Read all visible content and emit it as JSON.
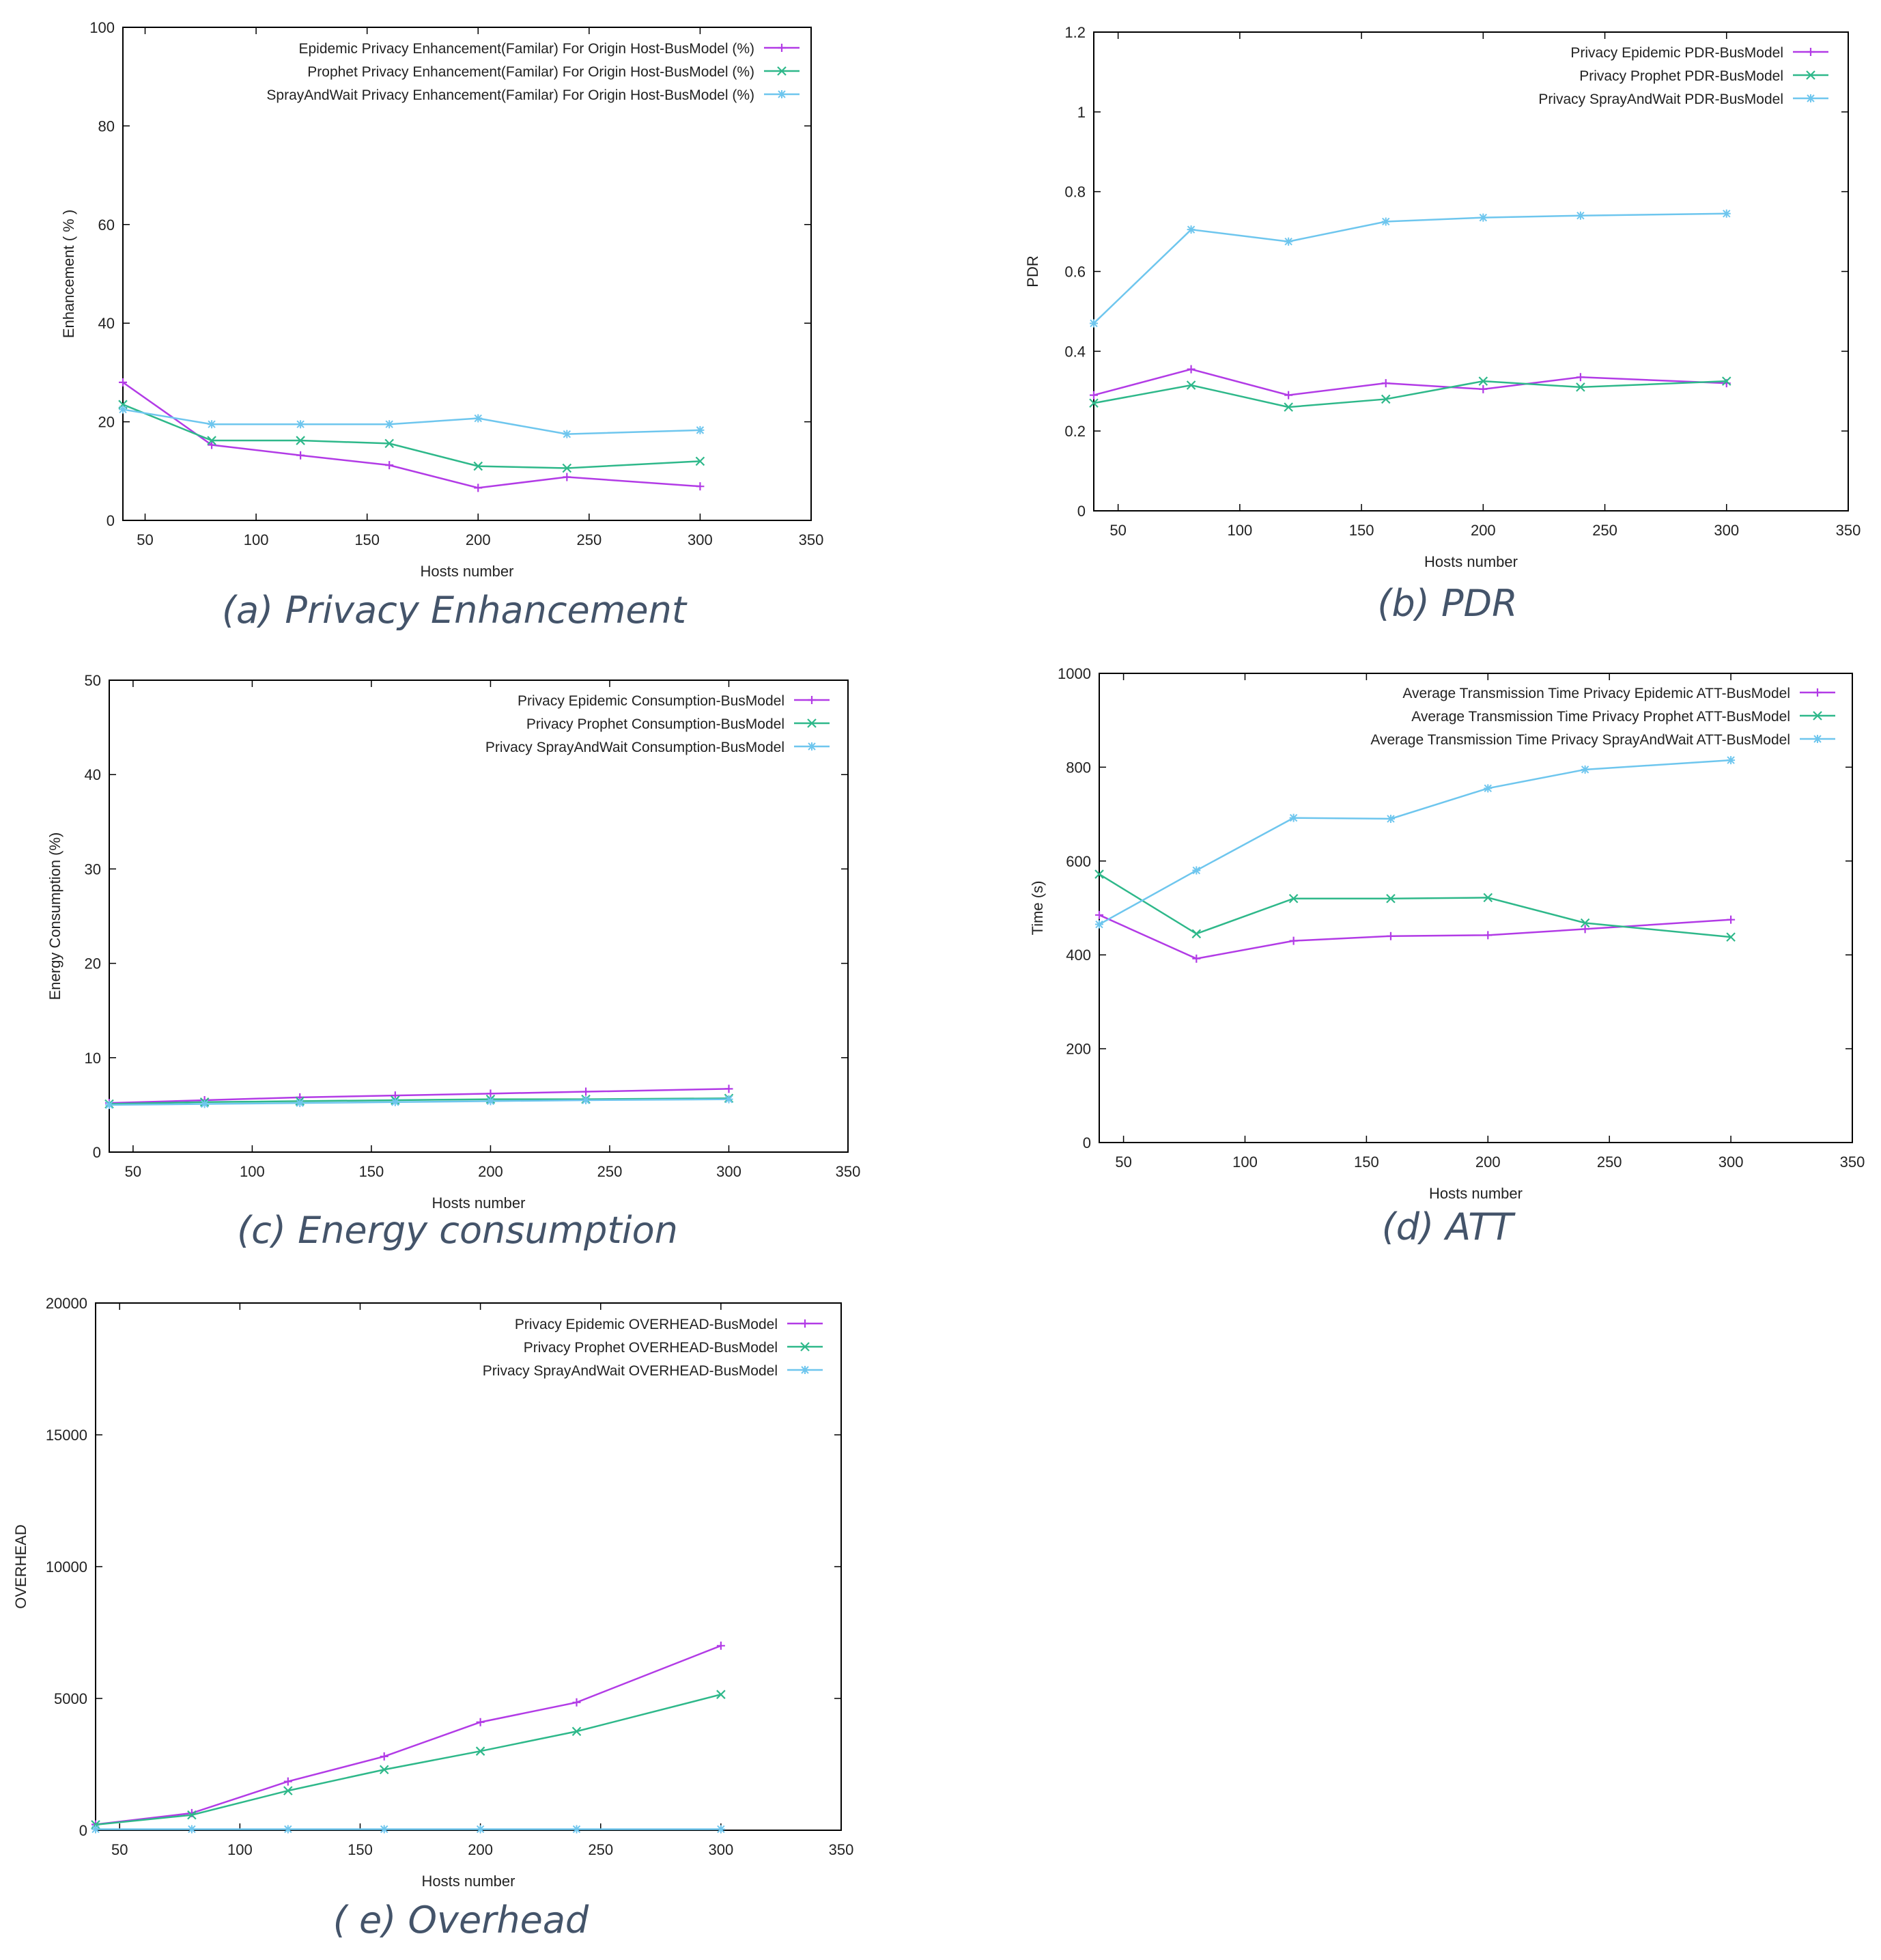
{
  "colors": {
    "epidemic": "#b23be6",
    "prophet": "#2eb88a",
    "spray": "#6ec6ee",
    "frame": "#000000"
  },
  "chart_data": [
    {
      "id": "a",
      "type": "line",
      "caption": "(a) Privacy Enhancement",
      "xlabel": "Hosts number",
      "ylabel": "Enhancement ( % )",
      "xlim": [
        40,
        350
      ],
      "ylim": [
        0,
        100
      ],
      "xticks": [
        50,
        100,
        150,
        200,
        250,
        300,
        350
      ],
      "yticks": [
        0,
        20,
        40,
        60,
        80,
        100
      ],
      "x": [
        40,
        80,
        120,
        160,
        200,
        240,
        300
      ],
      "legend_position": "top-right",
      "series": [
        {
          "name": "Epidemic  Privacy Enhancement(Familar) For Origin Host-BusModel (%)",
          "key": "epidemic",
          "marker": "+",
          "values": [
            28,
            15.3,
            13.2,
            11.2,
            6.6,
            8.8,
            6.9
          ]
        },
        {
          "name": "Prophet  Privacy Enhancement(Familar) For Origin Host-BusModel (%)",
          "key": "prophet",
          "marker": "x",
          "values": [
            23.5,
            16.2,
            16.2,
            15.6,
            11,
            10.6,
            12
          ]
        },
        {
          "name": "SprayAndWait  Privacy Enhancement(Familar) For Origin Host-BusModel (%)",
          "key": "spray",
          "marker": "*",
          "values": [
            22.5,
            19.5,
            19.5,
            19.5,
            20.7,
            17.5,
            18.3
          ]
        }
      ]
    },
    {
      "id": "b",
      "type": "line",
      "caption": "(b) PDR",
      "xlabel": "Hosts number",
      "ylabel": "PDR",
      "xlim": [
        40,
        350
      ],
      "ylim": [
        0,
        1.2
      ],
      "xticks": [
        50,
        100,
        150,
        200,
        250,
        300,
        350
      ],
      "yticks": [
        0,
        0.2,
        0.4,
        0.6,
        0.8,
        1,
        1.2
      ],
      "x": [
        40,
        80,
        120,
        160,
        200,
        240,
        300
      ],
      "legend_position": "top-right",
      "series": [
        {
          "name": "Privacy Epidemic PDR-BusModel",
          "key": "epidemic",
          "marker": "+",
          "values": [
            0.29,
            0.355,
            0.29,
            0.32,
            0.305,
            0.335,
            0.32
          ]
        },
        {
          "name": "Privacy Prophet PDR-BusModel",
          "key": "prophet",
          "marker": "x",
          "values": [
            0.27,
            0.315,
            0.26,
            0.28,
            0.325,
            0.31,
            0.325
          ]
        },
        {
          "name": "Privacy SprayAndWait PDR-BusModel",
          "key": "spray",
          "marker": "*",
          "values": [
            0.47,
            0.705,
            0.675,
            0.725,
            0.735,
            0.74,
            0.745
          ]
        }
      ]
    },
    {
      "id": "c",
      "type": "line",
      "caption": "(c) Energy consumption",
      "xlabel": "Hosts number",
      "ylabel": "Energy Consumption (%)",
      "xlim": [
        40,
        350
      ],
      "ylim": [
        0,
        50
      ],
      "xticks": [
        50,
        100,
        150,
        200,
        250,
        300,
        350
      ],
      "yticks": [
        0,
        10,
        20,
        30,
        40,
        50
      ],
      "x": [
        40,
        80,
        120,
        160,
        200,
        240,
        300
      ],
      "legend_position": "top-right",
      "series": [
        {
          "name": "Privacy Epidemic Consumption-BusModel",
          "key": "epidemic",
          "marker": "+",
          "values": [
            5.2,
            5.5,
            5.8,
            6.0,
            6.2,
            6.4,
            6.7
          ]
        },
        {
          "name": "Privacy Prophet Consumption-BusModel",
          "key": "prophet",
          "marker": "x",
          "values": [
            5.1,
            5.3,
            5.4,
            5.5,
            5.6,
            5.6,
            5.7
          ]
        },
        {
          "name": "Privacy SprayAndWait Consumption-BusModel",
          "key": "spray",
          "marker": "*",
          "values": [
            5.0,
            5.1,
            5.2,
            5.3,
            5.4,
            5.5,
            5.6
          ]
        }
      ]
    },
    {
      "id": "d",
      "type": "line",
      "caption": "(d) ATT",
      "xlabel": "Hosts number",
      "ylabel": "Time (s)",
      "xlim": [
        40,
        350
      ],
      "ylim": [
        0,
        1000
      ],
      "xticks": [
        50,
        100,
        150,
        200,
        250,
        300,
        350
      ],
      "yticks": [
        0,
        200,
        400,
        600,
        800,
        1000
      ],
      "x": [
        40,
        80,
        120,
        160,
        200,
        240,
        300
      ],
      "legend_position": "top-right",
      "series": [
        {
          "name": "Average Transmission Time Privacy Epidemic ATT-BusModel",
          "key": "epidemic",
          "marker": "+",
          "values": [
            485,
            392,
            430,
            440,
            442,
            455,
            475
          ]
        },
        {
          "name": "Average Transmission Time Privacy Prophet ATT-BusModel",
          "key": "prophet",
          "marker": "x",
          "values": [
            572,
            445,
            520,
            520,
            522,
            468,
            438
          ]
        },
        {
          "name": "Average Transmission Time Privacy SprayAndWait ATT-BusModel",
          "key": "spray",
          "marker": "*",
          "values": [
            465,
            580,
            692,
            690,
            755,
            795,
            815
          ]
        }
      ]
    },
    {
      "id": "e",
      "type": "line",
      "caption": "( e) Overhead",
      "xlabel": "Hosts number",
      "ylabel": "OVERHEAD",
      "xlim": [
        40,
        350
      ],
      "ylim": [
        0,
        20000
      ],
      "xticks": [
        50,
        100,
        150,
        200,
        250,
        300,
        350
      ],
      "yticks": [
        0,
        5000,
        10000,
        15000,
        20000
      ],
      "x": [
        40,
        80,
        120,
        160,
        200,
        240,
        300
      ],
      "legend_position": "top-right",
      "series": [
        {
          "name": "Privacy Epidemic OVERHEAD-BusModel",
          "key": "epidemic",
          "marker": "+",
          "values": [
            220,
            650,
            1850,
            2800,
            4100,
            4850,
            7000
          ]
        },
        {
          "name": "Privacy Prophet OVERHEAD-BusModel",
          "key": "prophet",
          "marker": "x",
          "values": [
            210,
            580,
            1500,
            2300,
            3000,
            3750,
            5150
          ]
        },
        {
          "name": "Privacy SprayAndWait OVERHEAD-BusModel",
          "key": "spray",
          "marker": "*",
          "values": [
            40,
            40,
            40,
            40,
            40,
            40,
            40
          ]
        }
      ]
    }
  ]
}
